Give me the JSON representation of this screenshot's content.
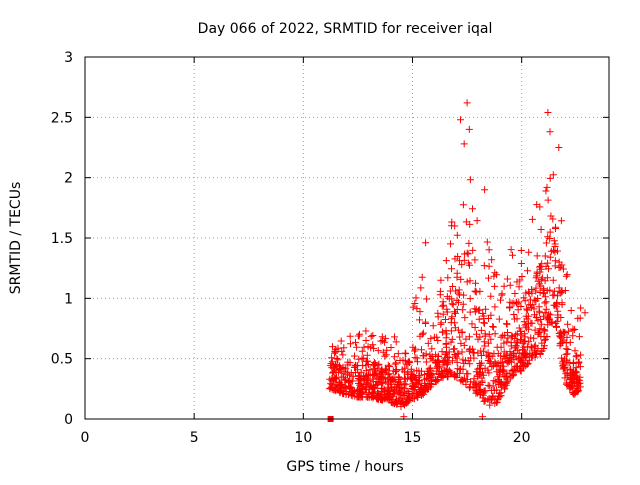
{
  "chart_data": {
    "type": "scatter",
    "title": "Day 066 of 2022, SRMTID for receiver iqal",
    "xlabel": "GPS time / hours",
    "ylabel": "SRMTID / TECUs",
    "xlim": [
      0,
      24
    ],
    "ylim": [
      0,
      3
    ],
    "xticks": [
      0,
      5,
      10,
      15,
      20
    ],
    "yticks": [
      0,
      0.5,
      1,
      1.5,
      2,
      2.5,
      3
    ],
    "xtick_labels": [
      "0",
      "5",
      "10",
      "15",
      "20"
    ],
    "ytick_labels": [
      "0",
      "0.5",
      "1",
      "1.5",
      "2",
      "2.5",
      "3"
    ],
    "grid": true,
    "legend": "none",
    "marker": "plus",
    "color": "#ff0000",
    "special_points": [
      {
        "x": 11.25,
        "y": 0.0,
        "marker": "square"
      }
    ],
    "envelope": [
      {
        "x": 11.2,
        "lo": 0.25,
        "hi": 0.6
      },
      {
        "x": 11.6,
        "lo": 0.22,
        "hi": 0.62
      },
      {
        "x": 12.0,
        "lo": 0.2,
        "hi": 0.7
      },
      {
        "x": 12.5,
        "lo": 0.18,
        "hi": 0.78
      },
      {
        "x": 13.0,
        "lo": 0.18,
        "hi": 0.72
      },
      {
        "x": 13.5,
        "lo": 0.16,
        "hi": 0.68
      },
      {
        "x": 14.0,
        "lo": 0.14,
        "hi": 0.75
      },
      {
        "x": 14.5,
        "lo": 0.1,
        "hi": 0.55
      },
      {
        "x": 15.0,
        "lo": 0.16,
        "hi": 0.95
      },
      {
        "x": 15.5,
        "lo": 0.2,
        "hi": 1.3
      },
      {
        "x": 16.0,
        "lo": 0.3,
        "hi": 1.1
      },
      {
        "x": 16.5,
        "lo": 0.35,
        "hi": 1.35
      },
      {
        "x": 17.0,
        "lo": 0.35,
        "hi": 1.9
      },
      {
        "x": 17.3,
        "lo": 0.3,
        "hi": 2.5
      },
      {
        "x": 17.6,
        "lo": 0.25,
        "hi": 2.55
      },
      {
        "x": 18.0,
        "lo": 0.2,
        "hi": 1.6
      },
      {
        "x": 18.5,
        "lo": 0.1,
        "hi": 1.55
      },
      {
        "x": 19.0,
        "lo": 0.15,
        "hi": 1.1
      },
      {
        "x": 19.5,
        "lo": 0.35,
        "hi": 1.45
      },
      {
        "x": 20.0,
        "lo": 0.4,
        "hi": 1.45
      },
      {
        "x": 20.5,
        "lo": 0.5,
        "hi": 1.7
      },
      {
        "x": 21.0,
        "lo": 0.55,
        "hi": 1.95
      },
      {
        "x": 21.3,
        "lo": 0.8,
        "hi": 2.45
      },
      {
        "x": 21.6,
        "lo": 0.75,
        "hi": 2.25
      },
      {
        "x": 22.0,
        "lo": 0.3,
        "hi": 1.3
      },
      {
        "x": 22.4,
        "lo": 0.2,
        "hi": 0.85
      },
      {
        "x": 22.7,
        "lo": 0.25,
        "hi": 0.85
      }
    ],
    "peaks": [
      {
        "x": 17.5,
        "y": 2.62
      },
      {
        "x": 17.2,
        "y": 2.48
      },
      {
        "x": 17.6,
        "y": 2.4
      },
      {
        "x": 21.2,
        "y": 2.54
      },
      {
        "x": 21.3,
        "y": 2.38
      },
      {
        "x": 21.7,
        "y": 2.25
      },
      {
        "x": 18.3,
        "y": 1.9
      },
      {
        "x": 15.6,
        "y": 1.46
      },
      {
        "x": 14.6,
        "y": 0.02
      },
      {
        "x": 18.2,
        "y": 0.02
      },
      {
        "x": 22.7,
        "y": 0.92
      },
      {
        "x": 22.9,
        "y": 0.88
      }
    ],
    "point_count": 1400
  }
}
